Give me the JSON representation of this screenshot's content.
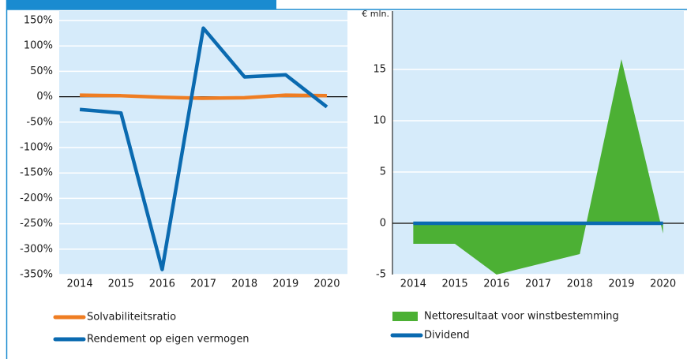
{
  "chart_data": [
    {
      "type": "line",
      "categories": [
        "2014",
        "2015",
        "2016",
        "2017",
        "2018",
        "2019",
        "2020"
      ],
      "series": [
        {
          "name": "Solvabiliteitsratio",
          "color": "#ef7d22",
          "values": [
            3,
            2,
            -1,
            -3,
            -2,
            3,
            2
          ]
        },
        {
          "name": "Rendement op eigen vermogen",
          "color": "#0a6ab0",
          "values": [
            -25,
            -32,
            -340,
            135,
            39,
            43,
            -20
          ]
        }
      ],
      "ylim": [
        -350,
        150
      ],
      "yticks": [
        {
          "value": 150,
          "label": "150%"
        },
        {
          "value": 100,
          "label": "100%"
        },
        {
          "value": 50,
          "label": "50%"
        },
        {
          "value": 0,
          "label": "0%"
        },
        {
          "value": -50,
          "label": "-50%"
        },
        {
          "value": -100,
          "label": "-100%"
        },
        {
          "value": -150,
          "label": "-150%"
        },
        {
          "value": -200,
          "label": "-200%"
        },
        {
          "value": -250,
          "label": "-250%"
        },
        {
          "value": -300,
          "label": "-300%"
        },
        {
          "value": -350,
          "label": "-350%"
        }
      ],
      "grid": true
    },
    {
      "type": "area",
      "y_label": "€ mln.",
      "categories": [
        "2014",
        "2015",
        "2016",
        "2017",
        "2018",
        "2019",
        "2020"
      ],
      "series": [
        {
          "name": "Nettoresultaat voor winstbestemming",
          "type": "area",
          "color": "#4cb034",
          "values": [
            -2,
            -2,
            -5,
            -4,
            -3,
            16,
            -1
          ]
        },
        {
          "name": "Dividend",
          "type": "line",
          "color": "#0a6ab0",
          "values": [
            0,
            0,
            0,
            0,
            0,
            0,
            0
          ]
        }
      ],
      "ylim": [
        -5,
        20
      ],
      "yticks": [
        -5,
        0,
        5,
        10,
        15
      ],
      "grid": true
    }
  ]
}
